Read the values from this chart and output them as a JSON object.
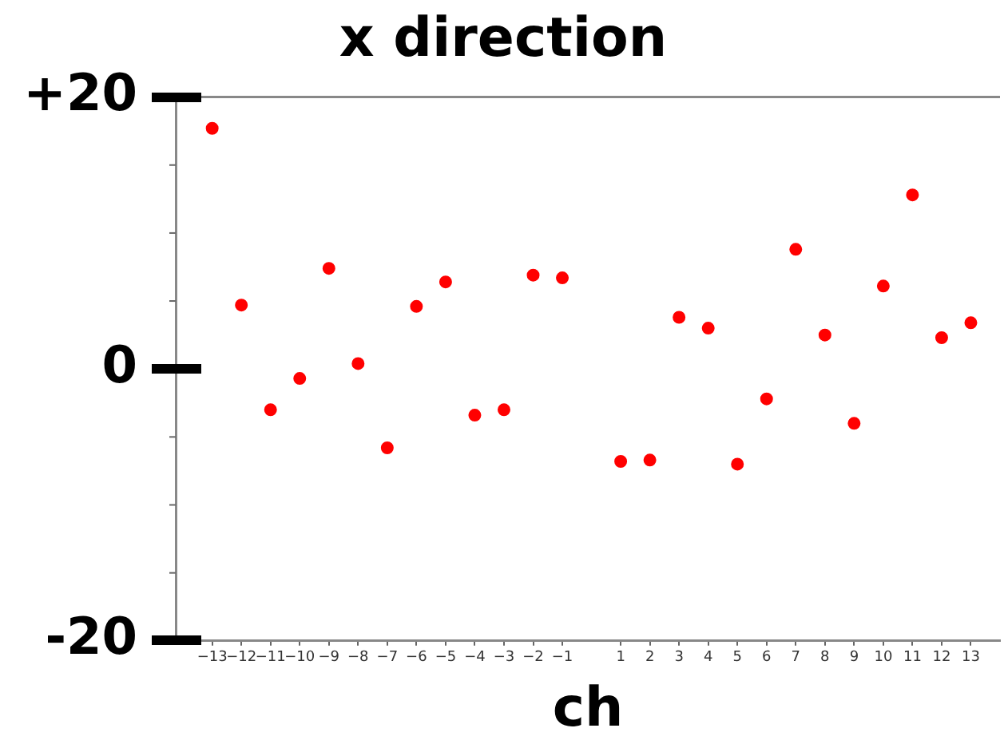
{
  "chart_data": {
    "type": "scatter",
    "title": "x direction",
    "xlabel": "ch",
    "x": [
      -13,
      -12,
      -11,
      -10,
      -9,
      -8,
      -7,
      -6,
      -5,
      -4,
      -3,
      -2,
      -1,
      1,
      2,
      3,
      4,
      5,
      6,
      7,
      8,
      9,
      10,
      11,
      12,
      13
    ],
    "values": [
      17.7,
      4.7,
      -3.0,
      -0.7,
      7.4,
      0.4,
      -5.8,
      4.6,
      6.4,
      -3.4,
      -3.0,
      6.9,
      6.7,
      -6.8,
      -6.7,
      3.8,
      3.0,
      -7.0,
      -2.2,
      8.8,
      2.5,
      -4.0,
      6.1,
      12.8,
      2.3,
      3.4
    ],
    "color": "#ff0000",
    "marker": "circle",
    "grid": false,
    "xlim": [
      -14.25,
      14
    ],
    "xticks": [
      {
        "value": -13,
        "label": "−13"
      },
      {
        "value": -12,
        "label": "−12"
      },
      {
        "value": -11,
        "label": "−11"
      },
      {
        "value": -10,
        "label": "−10"
      },
      {
        "value": -9,
        "label": "−9"
      },
      {
        "value": -8,
        "label": "−8"
      },
      {
        "value": -7,
        "label": "−7"
      },
      {
        "value": -6,
        "label": "−6"
      },
      {
        "value": -5,
        "label": "−5"
      },
      {
        "value": -4,
        "label": "−4"
      },
      {
        "value": -3,
        "label": "−3"
      },
      {
        "value": -2,
        "label": "−2"
      },
      {
        "value": -1,
        "label": "−1"
      },
      1,
      2,
      3,
      4,
      5,
      6,
      7,
      8,
      9,
      10,
      11,
      12,
      13
    ],
    "ylim": [
      -20,
      20
    ],
    "yticks": [
      -20,
      {
        "value": -15,
        "label": null
      },
      {
        "value": -10,
        "label": null
      },
      {
        "value": -5,
        "label": null
      },
      0,
      {
        "value": 5,
        "label": null
      },
      {
        "value": 10,
        "label": null
      },
      {
        "value": 15,
        "label": null
      },
      {
        "value": 20,
        "label": "+20"
      }
    ]
  }
}
